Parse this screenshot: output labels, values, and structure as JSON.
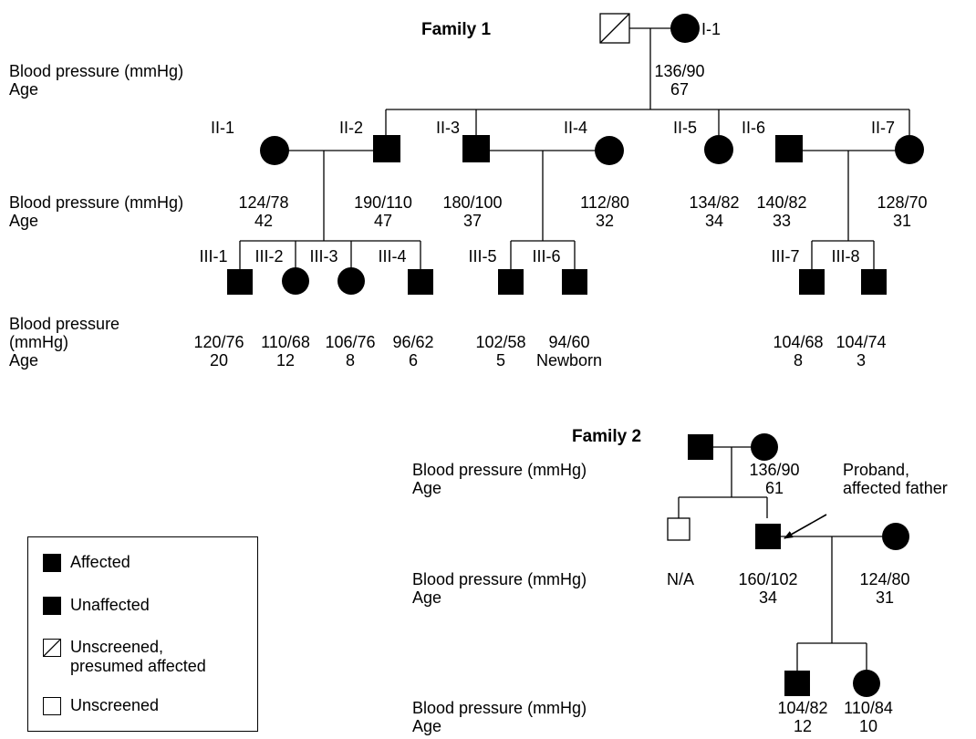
{
  "family1": {
    "title": "Family 1",
    "row_labels": {
      "gen1": [
        "Blood pressure (mmHg)",
        "Age"
      ],
      "gen2": [
        "Blood pressure (mmHg)",
        "Age"
      ],
      "gen3": [
        "Blood pressure",
        "(mmHg)",
        "Age"
      ]
    },
    "gen1": {
      "id": "I-1",
      "bp": "136/90",
      "age": "67"
    },
    "gen2": [
      {
        "id": "II-1",
        "bp": "124/78",
        "age": "42"
      },
      {
        "id": "II-2",
        "bp": "190/110",
        "age": "47"
      },
      {
        "id": "II-3",
        "bp": "180/100",
        "age": "37"
      },
      {
        "id": "II-4",
        "bp": "112/80",
        "age": "32"
      },
      {
        "id": "II-5",
        "bp": "134/82",
        "age": "34"
      },
      {
        "id": "II-6",
        "bp": "140/82",
        "age": "33"
      },
      {
        "id": "II-7",
        "bp": "128/70",
        "age": "31"
      }
    ],
    "gen3": [
      {
        "id": "III-1",
        "bp": "120/76",
        "age": "20"
      },
      {
        "id": "III-2",
        "bp": "110/68",
        "age": "12"
      },
      {
        "id": "III-3",
        "bp": "106/76",
        "age": "8"
      },
      {
        "id": "III-4",
        "bp": "96/62",
        "age": "6"
      },
      {
        "id": "III-5",
        "bp": "102/58",
        "age": "5"
      },
      {
        "id": "III-6",
        "bp": "94/60",
        "age": "Newborn"
      },
      {
        "id": "III-7",
        "bp": "104/68",
        "age": "8"
      },
      {
        "id": "III-8",
        "bp": "104/74",
        "age": "3"
      }
    ]
  },
  "family2": {
    "title": "Family 2",
    "row_labels": [
      "Blood pressure (mmHg)",
      "Age"
    ],
    "gen1": {
      "bp": "136/90",
      "age": "61"
    },
    "gen2": [
      {
        "bp": "N/A"
      },
      {
        "bp": "160/102",
        "age": "34"
      },
      {
        "bp": "124/80",
        "age": "31"
      }
    ],
    "gen3": [
      {
        "bp": "104/82",
        "age": "12"
      },
      {
        "bp": "110/84",
        "age": "10"
      }
    ],
    "proband_note": [
      "Proband,",
      "affected father"
    ]
  },
  "legend": [
    {
      "symbol": "filled-square",
      "label": [
        "Affected"
      ]
    },
    {
      "symbol": "filled-square",
      "label": [
        "Unaffected"
      ]
    },
    {
      "symbol": "slashed-square",
      "label": [
        "Unscreened,",
        "presumed affected"
      ]
    },
    {
      "symbol": "empty-square",
      "label": [
        "Unscreened"
      ]
    }
  ]
}
